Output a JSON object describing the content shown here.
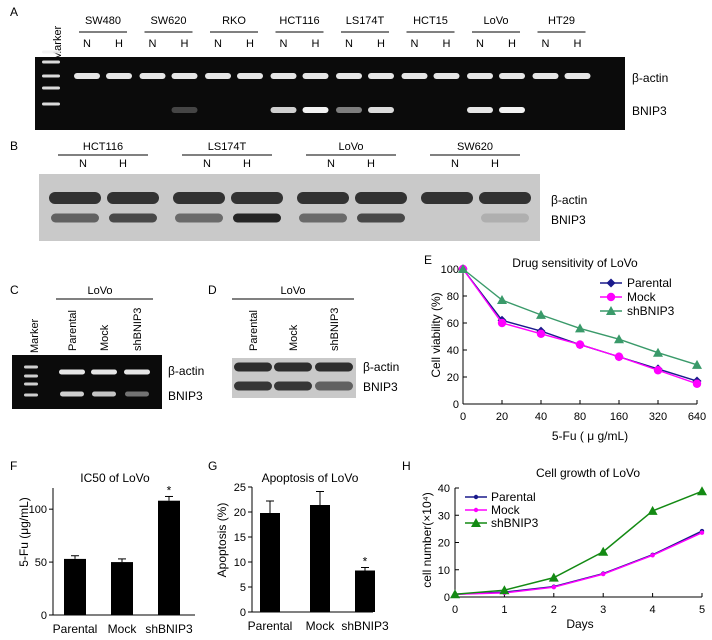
{
  "figure": {
    "panels": {
      "A": {
        "letter": "A",
        "marker": "Marker",
        "cell_lines": [
          "SW480",
          "SW620",
          "RKO",
          "HCT116",
          "LS174T",
          "HCT15",
          "LoVo",
          "HT29"
        ],
        "lane_labels": [
          "N",
          "H"
        ],
        "band_labels": [
          "β-actin",
          "BNIP3"
        ]
      },
      "B": {
        "letter": "B",
        "cell_lines": [
          "HCT116",
          "LS174T",
          "LoVo",
          "SW620"
        ],
        "lane_labels": [
          "N",
          "H"
        ],
        "band_labels": [
          "β-actin",
          "BNIP3"
        ]
      },
      "C": {
        "letter": "C",
        "group": "LoVo",
        "marker": "Marker",
        "lanes": [
          "Parental",
          "Mock",
          "shBNIP3"
        ],
        "band_labels": [
          "β-actin",
          "BNIP3"
        ]
      },
      "D": {
        "letter": "D",
        "group": "LoVo",
        "lanes": [
          "Parental",
          "Mock",
          "shBNIP3"
        ],
        "band_labels": [
          "β-actin",
          "BNIP3"
        ]
      },
      "E": {
        "letter": "E"
      },
      "F": {
        "letter": "F"
      },
      "G": {
        "letter": "G"
      },
      "H": {
        "letter": "H"
      }
    },
    "colors": {
      "parental": "#1a1a8c",
      "mock": "#ff00ff",
      "shbnip3": "#3a9a6a",
      "shbnip3_growth": "#138a13",
      "gel_bg": "#0b0b0b",
      "gel_band": "#f2f2f2",
      "blot_bg": "#c9c9c9",
      "blot_band": "#1c1c1c"
    }
  },
  "chart_data": [
    {
      "id": "E",
      "type": "line",
      "title": "Drug sensitivity of LoVo",
      "xlabel": "5-Fu ( μ g/mL)",
      "ylabel": "Cell viability (%)",
      "x": [
        "0",
        "20",
        "40",
        "80",
        "160",
        "320",
        "640"
      ],
      "ylim": [
        0,
        100
      ],
      "yticks": [
        0,
        20,
        40,
        60,
        80,
        100
      ],
      "legend": "top-right",
      "series": [
        {
          "name": "Parental",
          "marker": "diamond",
          "values": [
            100,
            62,
            54,
            44,
            35,
            26,
            17
          ]
        },
        {
          "name": "Mock",
          "marker": "circle",
          "values": [
            100,
            60,
            52,
            44,
            35,
            25,
            15
          ]
        },
        {
          "name": "shBNIP3",
          "marker": "triangle",
          "values": [
            100,
            77,
            66,
            56,
            48,
            38,
            29
          ]
        }
      ]
    },
    {
      "id": "F",
      "type": "bar",
      "title": "IC50 of LoVo",
      "ylabel": "5-Fu (μg/mL)",
      "categories": [
        "Parental",
        "Mock",
        "shBNIP3"
      ],
      "values": [
        53,
        50,
        108
      ],
      "errors": [
        3,
        3,
        4
      ],
      "significance": [
        "",
        "",
        "*"
      ],
      "ylim": [
        0,
        120
      ],
      "yticks": [
        0,
        50,
        100
      ]
    },
    {
      "id": "G",
      "type": "bar",
      "title": "Apoptosis of LoVo",
      "ylabel": "Apoptosis (%)",
      "categories": [
        "Parental",
        "Mock",
        "shBNIP3"
      ],
      "values": [
        19.8,
        21.4,
        8.3
      ],
      "errors": [
        2.4,
        2.7,
        0.6
      ],
      "significance": [
        "",
        "",
        "*"
      ],
      "ylim": [
        0,
        25
      ],
      "yticks": [
        0,
        5,
        10,
        15,
        20,
        25
      ]
    },
    {
      "id": "H",
      "type": "line",
      "title": "Cell growth of LoVo",
      "xlabel": "Days",
      "ylabel": "cell number(×10⁴)",
      "x": [
        0,
        1,
        2,
        3,
        4,
        5
      ],
      "ylim": [
        0,
        40
      ],
      "yticks": [
        0,
        10,
        20,
        30,
        40
      ],
      "legend": "top-left",
      "series": [
        {
          "name": "Parental",
          "values": [
            1,
            1.8,
            3.8,
            8.6,
            15.5,
            24.2
          ]
        },
        {
          "name": "Mock",
          "values": [
            1,
            1.5,
            3.6,
            8.4,
            15.3,
            23.6
          ]
        },
        {
          "name": "shBNIP3",
          "values": [
            1,
            2.5,
            7.1,
            16.6,
            31.6,
            38.8
          ]
        }
      ]
    }
  ]
}
